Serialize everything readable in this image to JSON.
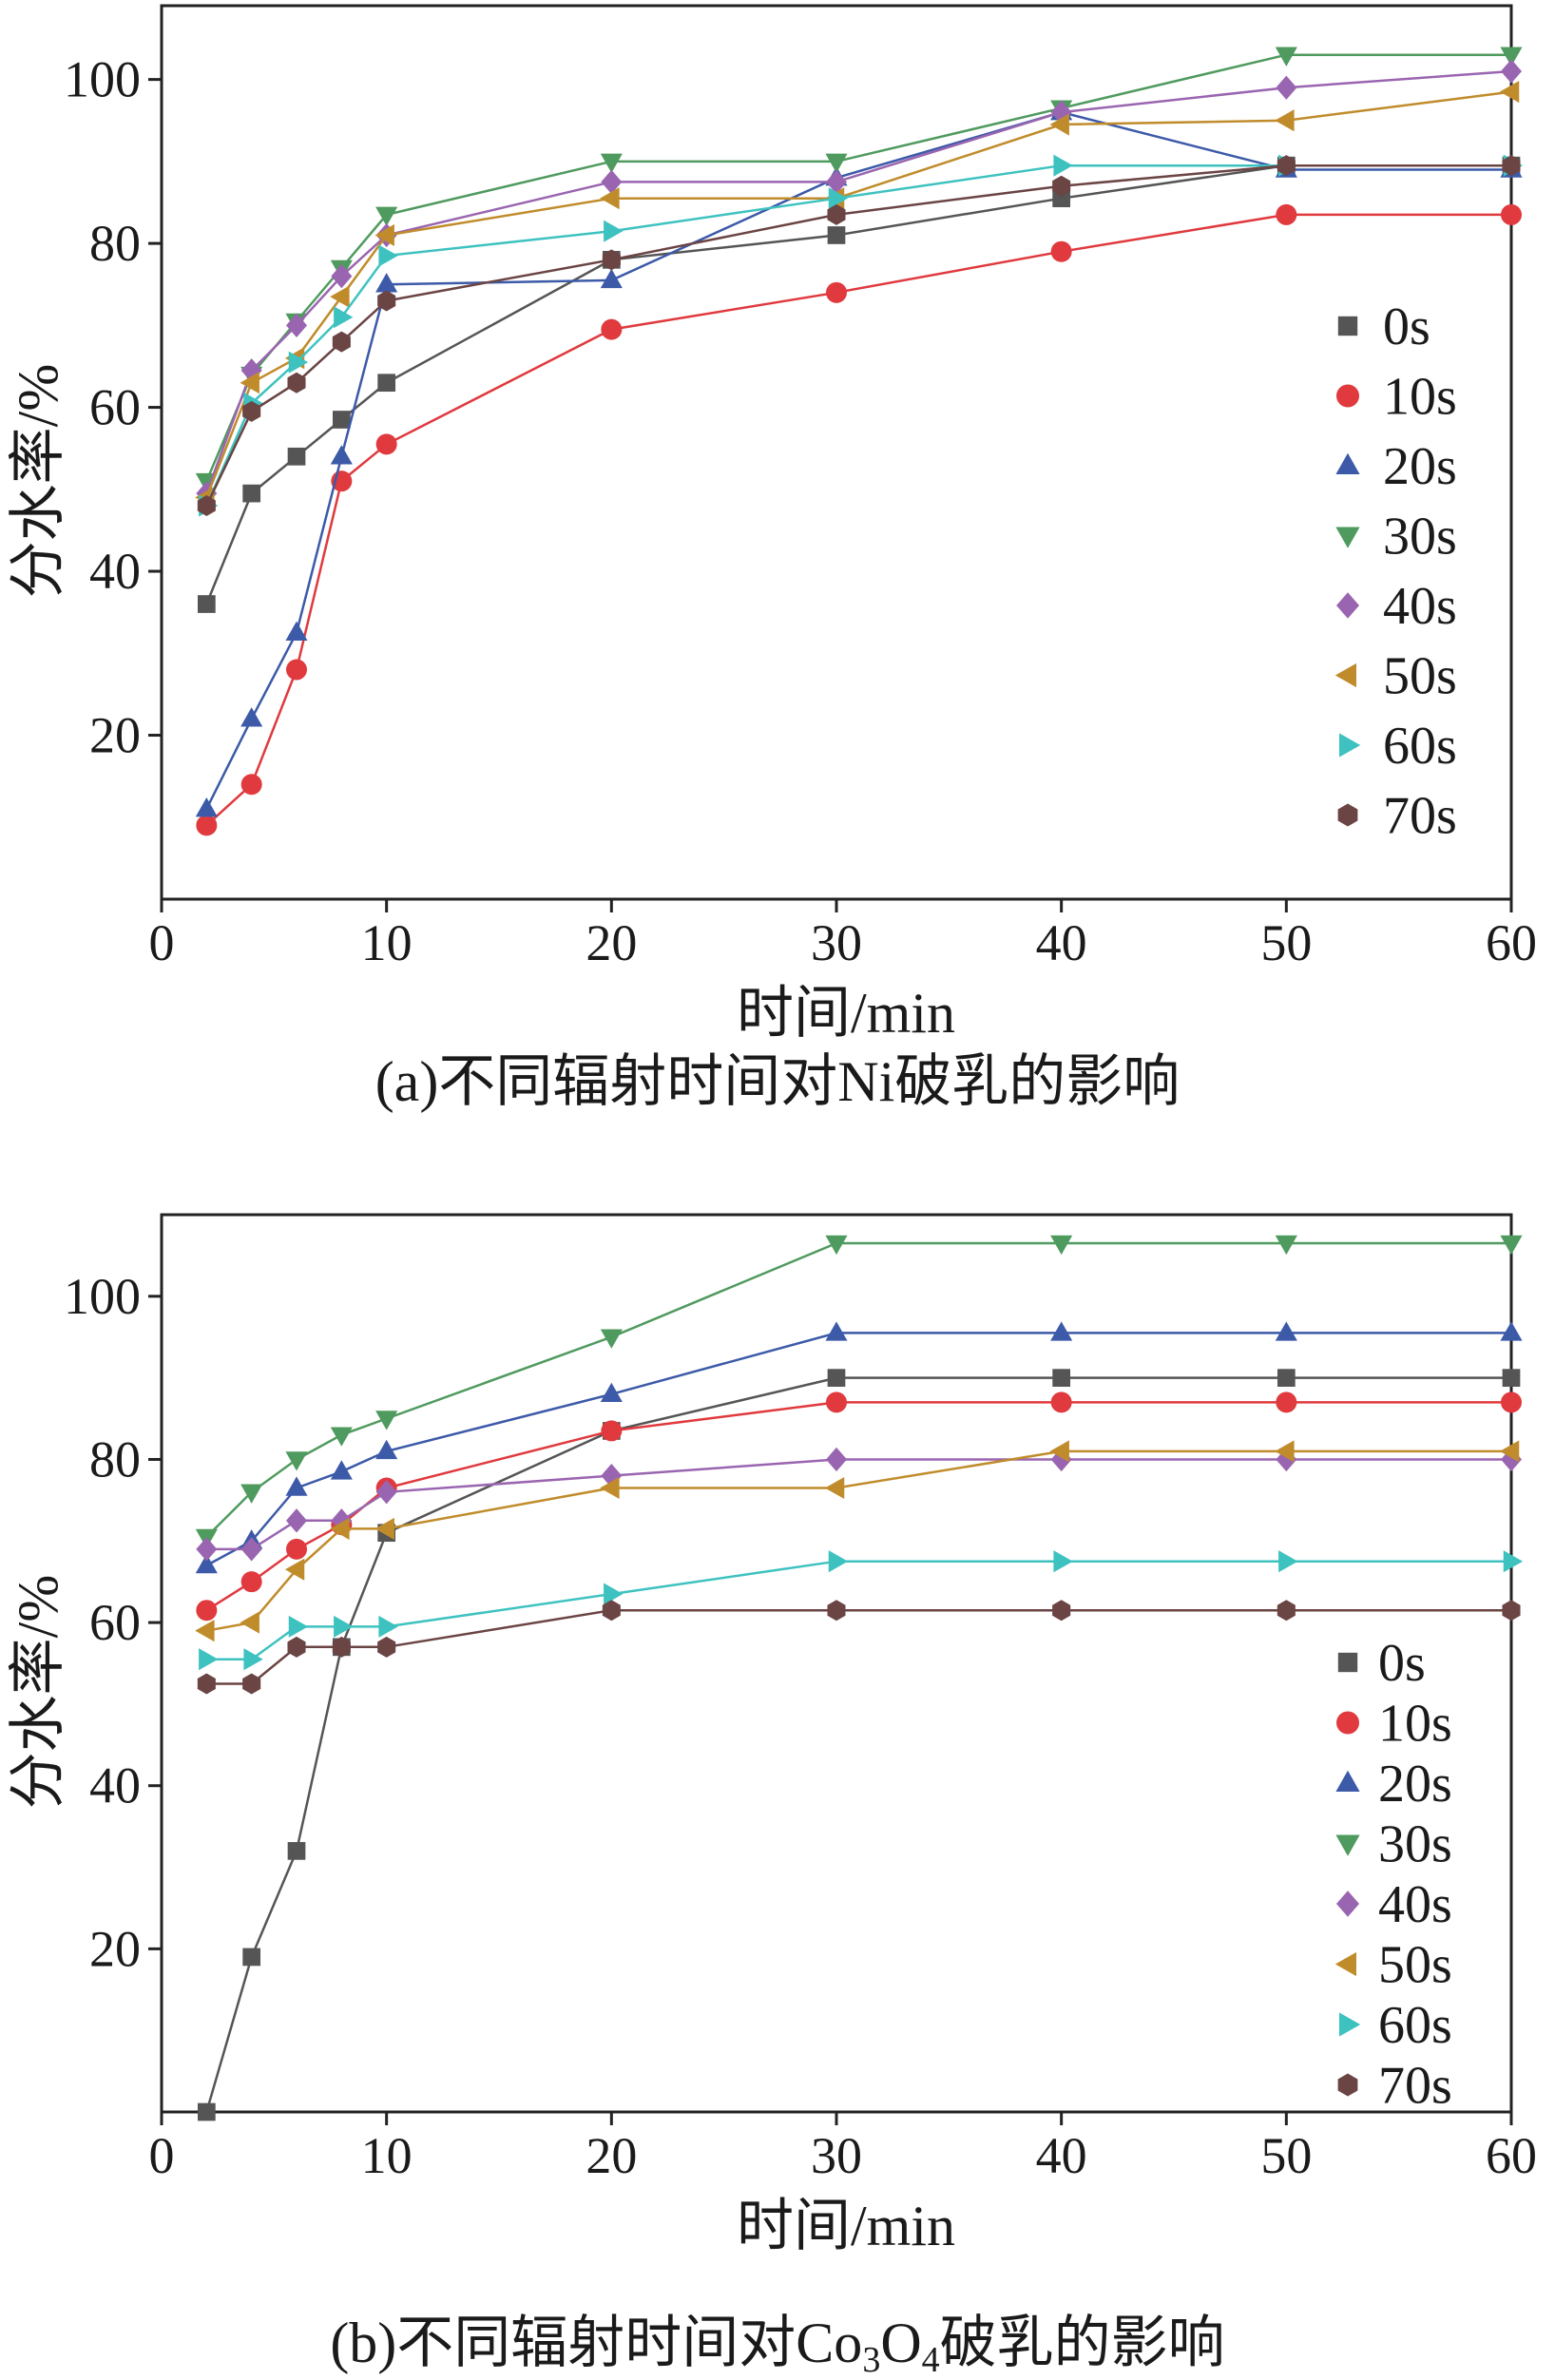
{
  "colors": {
    "0s": "#555555",
    "10s": "#e0393e",
    "20s": "#3c5aa8",
    "30s": "#4f9a5e",
    "40s": "#9a65b0",
    "50s": "#c08c2b",
    "60s": "#3ec2c0",
    "70s": "#6b4444"
  },
  "chart_data": [
    {
      "type": "line",
      "title": "",
      "caption": "(a)不同辐射时间对Ni破乳的影响",
      "xlabel": "时间/min",
      "ylabel": "分水率/%",
      "xlim": [
        0,
        60
      ],
      "ylim": [
        0,
        109
      ],
      "xticks": [
        0,
        10,
        20,
        30,
        40,
        50,
        60
      ],
      "yticks": [
        20,
        40,
        60,
        80,
        100
      ],
      "grid": false,
      "legend_position": "right",
      "series": [
        {
          "name": "0s",
          "marker": "square",
          "x": [
            2,
            4,
            6,
            8,
            10,
            20,
            30,
            40,
            50,
            60
          ],
          "y": [
            36,
            49.5,
            54,
            58.5,
            63,
            78,
            81,
            85.5,
            89.5,
            89.5
          ]
        },
        {
          "name": "10s",
          "marker": "circle",
          "x": [
            2,
            4,
            6,
            8,
            10,
            20,
            30,
            40,
            50,
            60
          ],
          "y": [
            9,
            14,
            28,
            51,
            55.5,
            69.5,
            74,
            79,
            83.5,
            83.5
          ]
        },
        {
          "name": "20s",
          "marker": "triangle-up",
          "x": [
            2,
            4,
            6,
            8,
            10,
            20,
            30,
            40,
            50,
            60
          ],
          "y": [
            11,
            22,
            32.5,
            54,
            75,
            75.5,
            88,
            96,
            89,
            89
          ]
        },
        {
          "name": "30s",
          "marker": "triangle-down",
          "x": [
            2,
            4,
            6,
            8,
            10,
            20,
            30,
            40,
            50,
            60
          ],
          "y": [
            51,
            64,
            70.5,
            77,
            83.5,
            90,
            90,
            96.5,
            103,
            103
          ]
        },
        {
          "name": "40s",
          "marker": "diamond",
          "x": [
            2,
            4,
            6,
            8,
            10,
            20,
            30,
            40,
            50,
            60
          ],
          "y": [
            49.5,
            64.5,
            70,
            76,
            81,
            87.5,
            87.5,
            96,
            99,
            101
          ]
        },
        {
          "name": "50s",
          "marker": "triangle-left",
          "x": [
            2,
            4,
            6,
            8,
            10,
            20,
            30,
            40,
            50,
            60
          ],
          "y": [
            49,
            63,
            66,
            73.5,
            81,
            85.5,
            85.5,
            94.5,
            95,
            98.5
          ]
        },
        {
          "name": "60s",
          "marker": "triangle-right",
          "x": [
            2,
            4,
            6,
            8,
            10,
            20,
            30,
            40,
            50,
            60
          ],
          "y": [
            48,
            60.5,
            65.5,
            71,
            78.5,
            81.5,
            85.5,
            89.5,
            89.5,
            89.5
          ]
        },
        {
          "name": "70s",
          "marker": "hexagon",
          "x": [
            2,
            4,
            6,
            8,
            10,
            20,
            30,
            40,
            50,
            60
          ],
          "y": [
            48,
            59.5,
            63,
            68,
            73,
            78,
            83.5,
            87,
            89.5,
            89.5
          ]
        }
      ]
    },
    {
      "type": "line",
      "title": "",
      "caption_prefix": "(b)不同辐射时间对Co",
      "caption_sub1": "3",
      "caption_mid": "O",
      "caption_sub2": "4",
      "caption_suffix": "破乳的影响",
      "xlabel": "时间/min",
      "ylabel": "分水率/%",
      "xlim": [
        0,
        60
      ],
      "ylim": [
        0,
        110
      ],
      "xticks": [
        0,
        10,
        20,
        30,
        40,
        50,
        60
      ],
      "yticks": [
        20,
        40,
        60,
        80,
        100
      ],
      "grid": false,
      "legend_position": "right",
      "series": [
        {
          "name": "0s",
          "marker": "square",
          "x": [
            2,
            4,
            6,
            8,
            10,
            20,
            30,
            40,
            50,
            60
          ],
          "y": [
            0,
            19,
            32,
            57,
            71,
            83.5,
            90,
            90,
            90,
            90
          ]
        },
        {
          "name": "10s",
          "marker": "circle",
          "x": [
            2,
            4,
            6,
            8,
            10,
            20,
            30,
            40,
            50,
            60
          ],
          "y": [
            61.5,
            65,
            69,
            72,
            76.5,
            83.5,
            87,
            87,
            87,
            87
          ]
        },
        {
          "name": "20s",
          "marker": "triangle-up",
          "x": [
            2,
            4,
            6,
            8,
            10,
            20,
            30,
            40,
            50,
            60
          ],
          "y": [
            67,
            70,
            76.5,
            78.5,
            81,
            88,
            95.5,
            95.5,
            95.5,
            95.5
          ]
        },
        {
          "name": "30s",
          "marker": "triangle-down",
          "x": [
            2,
            4,
            6,
            8,
            10,
            20,
            30,
            40,
            50,
            60
          ],
          "y": [
            70.5,
            76,
            80,
            83,
            85,
            95,
            106.5,
            106.5,
            106.5,
            106.5
          ]
        },
        {
          "name": "40s",
          "marker": "diamond",
          "x": [
            2,
            4,
            6,
            8,
            10,
            20,
            30,
            40,
            50,
            60
          ],
          "y": [
            69,
            69,
            72.5,
            72.5,
            76,
            78,
            80,
            80,
            80,
            80
          ]
        },
        {
          "name": "50s",
          "marker": "triangle-left",
          "x": [
            2,
            4,
            6,
            8,
            10,
            20,
            30,
            40,
            50,
            60
          ],
          "y": [
            59,
            60,
            66.5,
            71.5,
            71.5,
            76.5,
            76.5,
            81,
            81,
            81
          ]
        },
        {
          "name": "60s",
          "marker": "triangle-right",
          "x": [
            2,
            4,
            6,
            8,
            10,
            20,
            30,
            40,
            50,
            60
          ],
          "y": [
            55.5,
            55.5,
            59.5,
            59.5,
            59.5,
            63.5,
            67.5,
            67.5,
            67.5,
            67.5
          ]
        },
        {
          "name": "70s",
          "marker": "hexagon",
          "x": [
            2,
            4,
            6,
            8,
            10,
            20,
            30,
            40,
            50,
            60
          ],
          "y": [
            52.5,
            52.5,
            57,
            57,
            57,
            61.5,
            61.5,
            61.5,
            61.5,
            61.5
          ]
        }
      ]
    }
  ]
}
